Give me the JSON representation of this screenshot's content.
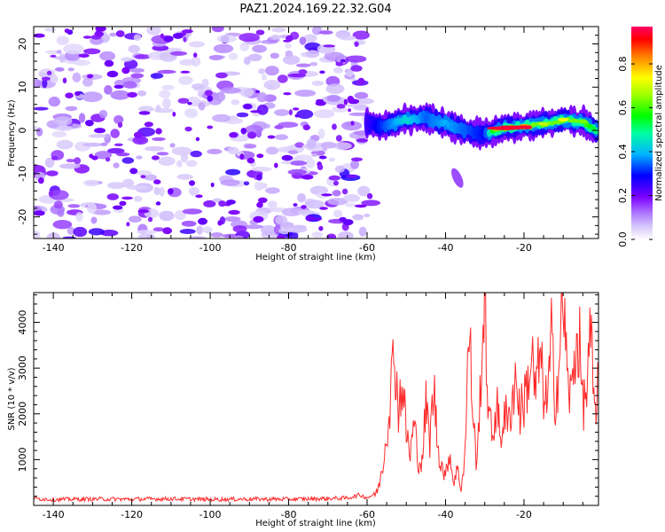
{
  "title": "PAZ1.2024.169.22.32.G04",
  "chart_data": [
    {
      "type": "heatmap",
      "xlabel": "Height of straight line (km)",
      "ylabel": "Frequency (Hz)",
      "xlim": [
        -145,
        -1
      ],
      "ylim": [
        -25,
        24
      ],
      "xticks": [
        -140,
        -120,
        -100,
        -80,
        -60,
        -40,
        -20
      ],
      "yticks": [
        -20,
        -10,
        0,
        10,
        20
      ],
      "colorbar": {
        "label": "Normalized spectral amplitude",
        "range": [
          0,
          0.97
        ],
        "ticks": [
          0.0,
          0.2,
          0.4,
          0.6,
          0.8
        ],
        "colormap": [
          "#ffffff",
          "#b49bf5",
          "#7b00ff",
          "#0000ff",
          "#00d0ff",
          "#00ff3c",
          "#ffff00",
          "#ff8000",
          "#ff0000",
          "#ff0066"
        ]
      },
      "noise_region": {
        "x_range": [
          -145,
          -59
        ],
        "y_range": [
          -25,
          24
        ],
        "typical_amplitude": 0.12
      },
      "signal_track": {
        "x": [
          -60,
          -55,
          -50,
          -45,
          -40,
          -35,
          -30,
          -25,
          -20,
          -15,
          -10,
          -5,
          -1
        ],
        "y": [
          1.5,
          1.0,
          2.5,
          3.0,
          1.5,
          0.0,
          -1.0,
          0.5,
          1.0,
          1.5,
          2.5,
          2.0,
          -0.5
        ],
        "amplitude": [
          0.25,
          0.35,
          0.45,
          0.35,
          0.4,
          0.35,
          0.3,
          0.97,
          0.85,
          0.7,
          0.75,
          0.65,
          0.5
        ]
      },
      "blob": {
        "x": -37,
        "y": -11,
        "amplitude": 0.15
      }
    },
    {
      "type": "line",
      "xlabel": "Height of straight line (km)",
      "ylabel": "SNR (10 * v/v)",
      "xlim": [
        -145,
        -1
      ],
      "ylim": [
        0,
        4650
      ],
      "xticks": [
        -140,
        -120,
        -100,
        -80,
        -60,
        -40,
        -20
      ],
      "yticks": [
        1000,
        2000,
        3000,
        4000
      ],
      "series": [
        {
          "color": "#ff2a2a",
          "x": [
            -145,
            -140,
            -130,
            -120,
            -110,
            -100,
            -90,
            -80,
            -70,
            -65,
            -62,
            -60,
            -58,
            -57,
            -56,
            -55,
            -54,
            -53,
            -52,
            -51,
            -50,
            -49,
            -48,
            -47,
            -46,
            -45,
            -44,
            -43,
            -42,
            -41,
            -40,
            -39,
            -38,
            -37,
            -36,
            -35,
            -34,
            -33,
            -32,
            -31,
            -30,
            -29,
            -28,
            -27,
            -26,
            -25,
            -24,
            -23,
            -22,
            -21,
            -20,
            -19,
            -18,
            -17,
            -16,
            -15,
            -14,
            -13,
            -12,
            -11,
            -10,
            -9,
            -8,
            -7,
            -6,
            -5,
            -4,
            -3,
            -2,
            -1
          ],
          "y": [
            150,
            130,
            140,
            135,
            145,
            130,
            140,
            135,
            150,
            160,
            230,
            170,
            250,
            400,
            900,
            1600,
            2500,
            3400,
            2100,
            2700,
            1600,
            1100,
            1800,
            1000,
            900,
            2200,
            1400,
            2600,
            1300,
            900,
            600,
            1200,
            500,
            800,
            350,
            1200,
            3900,
            2000,
            800,
            2900,
            4450,
            1900,
            1500,
            2300,
            1400,
            2100,
            1700,
            2400,
            2800,
            2000,
            2300,
            2700,
            3200,
            2400,
            3300,
            2500,
            2200,
            3600,
            2300,
            3100,
            4650,
            2800,
            2300,
            3400,
            3700,
            2200,
            2500,
            3700,
            1900,
            3000
          ]
        }
      ]
    }
  ]
}
